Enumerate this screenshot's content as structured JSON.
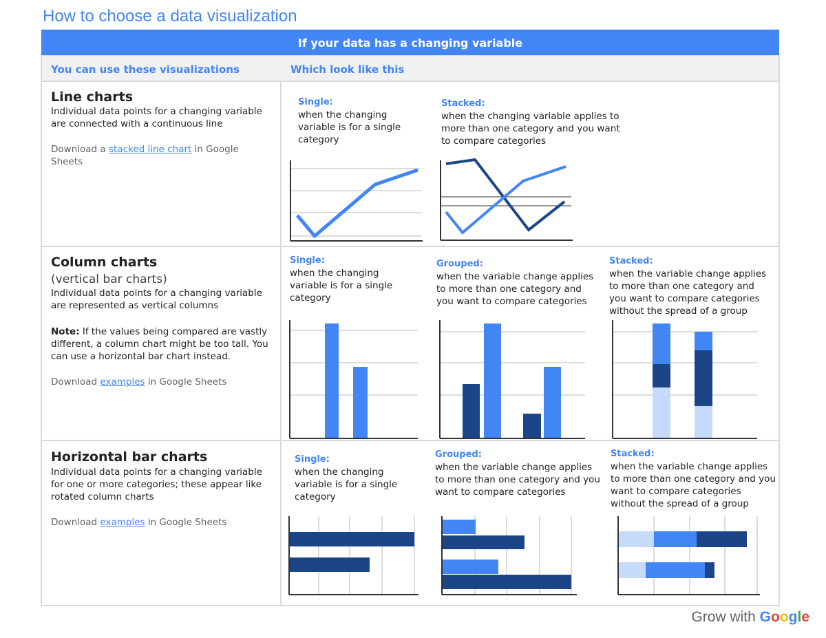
{
  "title": "How to choose a data visualization",
  "banner": "If your data has a changing variable",
  "columns": [
    "You can use these visualizations",
    "Which look like this"
  ],
  "rows": [
    {
      "heading": "Line charts",
      "description": "Individual data points for a changing variable are connected with a continuous line",
      "download": {
        "before": "Download a ",
        "link": "stacked line chart",
        "after": " in Google Sheets"
      },
      "examples": [
        {
          "label": "Single:",
          "text": "when the changing variable is for a single category"
        },
        {
          "label": "Stacked:",
          "text": "when the changing variable applies to more than one category and you want to compare categories"
        }
      ]
    },
    {
      "heading": "Column charts",
      "subheading": "(vertical bar charts)",
      "description": "Individual data points for a changing variable are represented as vertical columns",
      "note": {
        "label": "Note:",
        "text": " If the values being compared are vastly different, a column chart might be too tall. You can use a horizontal bar chart instead."
      },
      "download": {
        "before": "Download ",
        "link": "examples",
        "after": " in Google Sheets"
      },
      "examples": [
        {
          "label": "Single:",
          "text": "when the changing variable is for a single category"
        },
        {
          "label": "Grouped:",
          "text": "when the variable change applies to more than one category and you want to compare categories"
        },
        {
          "label": "Stacked:",
          "text": "when the variable change applies to more than one category and you want to compare categories without the spread of a group"
        }
      ]
    },
    {
      "heading": "Horizontal bar charts",
      "description": "Individual data points for a changing variable for one or more categories; these appear like rotated column charts",
      "download": {
        "before": "Download ",
        "link": "examples",
        "after": " in Google Sheets"
      },
      "examples": [
        {
          "label": "Single:",
          "text": "when the changing variable is for a single category"
        },
        {
          "label": "Grouped:",
          "text": "when the variable change applies to more than one category and you want to compare categories"
        },
        {
          "label": "Stacked:",
          "text": "when the variable change applies to more than one category and you want to compare categories without the spread of a group"
        }
      ]
    }
  ],
  "footer": {
    "text": "Grow with",
    "brand": "Google"
  }
}
